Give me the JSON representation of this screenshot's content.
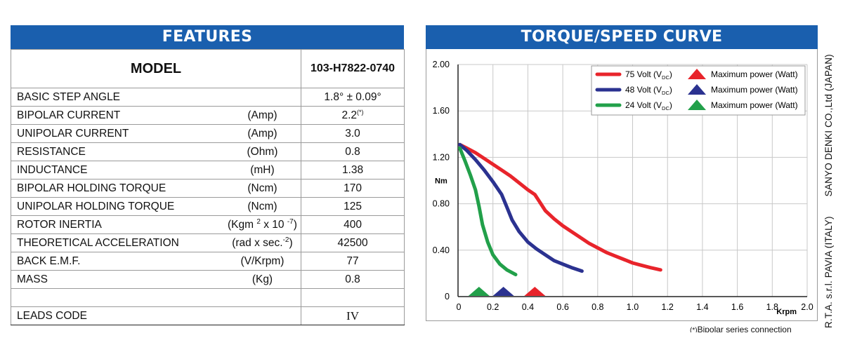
{
  "features": {
    "header": "FEATURES",
    "model_label": "MODEL",
    "model_value": "103-H7822-0740",
    "rows": [
      {
        "name": "BASIC STEP ANGLE",
        "unit": "",
        "value": "1.8° ± 0.09°"
      },
      {
        "name": "BIPOLAR CURRENT",
        "unit": "(Amp)",
        "value": "2.2",
        "value_sup": "(*)"
      },
      {
        "name": "UNIPOLAR CURRENT",
        "unit": "(Amp)",
        "value": "3.0"
      },
      {
        "name": "RESISTANCE",
        "unit": "(Ohm)",
        "value": "0.8"
      },
      {
        "name": "INDUCTANCE",
        "unit": "(mH)",
        "value": "1.38"
      },
      {
        "name": "BIPOLAR HOLDING TORQUE",
        "unit": "(Ncm)",
        "value": "170"
      },
      {
        "name": "UNIPOLAR HOLDING TORQUE",
        "unit": "(Ncm)",
        "value": "125"
      },
      {
        "name": "ROTOR INERTIA",
        "unit_pre": "(Kgm ",
        "unit_sup1": "2",
        "unit_mid": " x 10 ",
        "unit_sup2": "-7",
        "unit_post": ")",
        "value": "400"
      },
      {
        "name": "THEORETICAL ACCELERATION",
        "unit_pre": "(rad x sec.",
        "unit_sup1": "-2",
        "unit_post": ")",
        "value": "42500"
      },
      {
        "name": "BACK E.M.F.",
        "unit": "(V/Krpm)",
        "value": "77"
      },
      {
        "name": "MASS",
        "unit": "(Kg)",
        "value": "0.8"
      }
    ],
    "leads_label": "LEADS CODE",
    "leads_value": "IV"
  },
  "curve": {
    "header": "TORQUE/SPEED CURVE"
  },
  "chart_data": {
    "type": "line",
    "title": "TORQUE/SPEED CURVE",
    "xlabel": "Krpm",
    "ylabel": "Nm",
    "xlim": [
      0,
      2.0
    ],
    "ylim": [
      0,
      2.0
    ],
    "xticks": [
      "0",
      "0.2",
      "0.4",
      "0.6",
      "0.8",
      "1.0",
      "1.2",
      "1.4",
      "1.6",
      "1.8",
      "2.0"
    ],
    "yticks": [
      "0",
      "0.40",
      "0.80",
      "1.20",
      "1.60",
      "2.00"
    ],
    "grid": true,
    "legend_position": "top-right",
    "legend_max_power_label": "Maximum power (Watt)",
    "series": [
      {
        "name": "75 Volt (V_DC)",
        "volt": "75 Volt (V",
        "dc": "DC",
        "color": "#e8242b",
        "x": [
          0.01,
          0.05,
          0.1,
          0.15,
          0.2,
          0.25,
          0.3,
          0.35,
          0.4,
          0.44,
          0.47,
          0.5,
          0.55,
          0.6,
          0.65,
          0.7,
          0.75,
          0.8,
          0.85,
          0.9,
          0.95,
          1.0,
          1.05,
          1.1,
          1.16
        ],
        "y": [
          1.31,
          1.28,
          1.24,
          1.19,
          1.14,
          1.09,
          1.04,
          0.98,
          0.92,
          0.88,
          0.81,
          0.74,
          0.67,
          0.61,
          0.56,
          0.51,
          0.46,
          0.42,
          0.38,
          0.35,
          0.32,
          0.29,
          0.27,
          0.25,
          0.23
        ],
        "max_power_x": 0.44
      },
      {
        "name": "48 Volt (V_DC)",
        "volt": "48 Volt (V",
        "dc": "DC",
        "color": "#2b3290",
        "x": [
          0.01,
          0.05,
          0.1,
          0.15,
          0.2,
          0.25,
          0.28,
          0.31,
          0.35,
          0.4,
          0.45,
          0.5,
          0.55,
          0.6,
          0.65,
          0.71
        ],
        "y": [
          1.31,
          1.26,
          1.18,
          1.09,
          0.99,
          0.88,
          0.77,
          0.66,
          0.56,
          0.47,
          0.41,
          0.36,
          0.31,
          0.28,
          0.25,
          0.22
        ],
        "max_power_x": 0.26
      },
      {
        "name": "24 Volt (V_DC)",
        "volt": "24 Volt (V",
        "dc": "DC",
        "color": "#22a04a",
        "x": [
          0.01,
          0.04,
          0.07,
          0.1,
          0.12,
          0.14,
          0.17,
          0.2,
          0.24,
          0.28,
          0.33
        ],
        "y": [
          1.28,
          1.17,
          1.05,
          0.92,
          0.78,
          0.62,
          0.47,
          0.36,
          0.28,
          0.23,
          0.19
        ],
        "max_power_x": 0.12
      }
    ]
  },
  "side_text": {
    "part1": "R.T.A.  s.r.l. PAVIA (ITALY)",
    "part2": "SANYO DENKI CO.,Ltd (JAPAN)"
  },
  "footnote": {
    "mark": "(*)",
    "text": "Bipolar series connection"
  }
}
